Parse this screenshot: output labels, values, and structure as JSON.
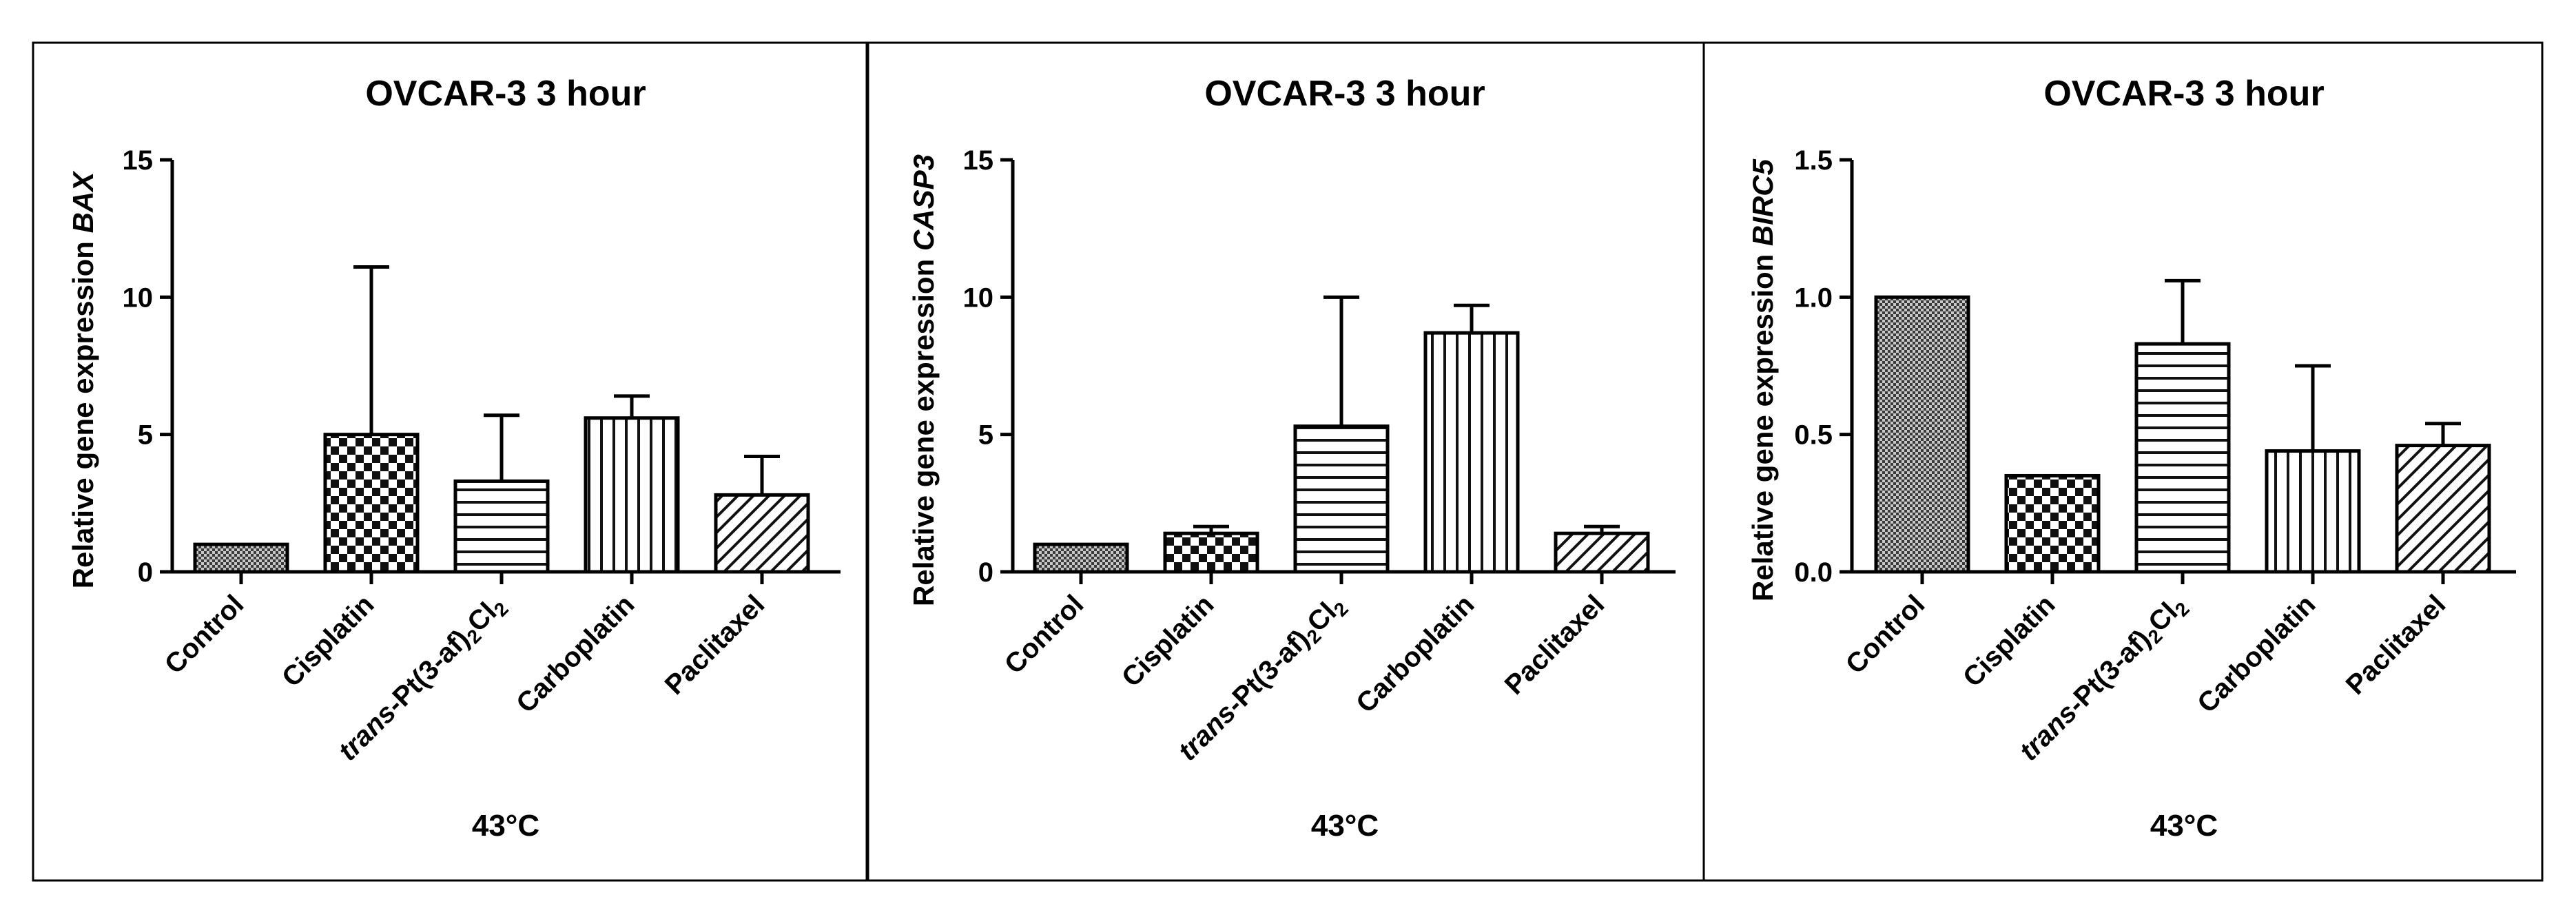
{
  "chart_data": [
    {
      "type": "bar",
      "title": "OVCAR-3 3 hour",
      "ylabel_prefix": "Relative gene expression ",
      "ylabel_gene": "BAX",
      "xlabel": "43°C",
      "categories": [
        "Control",
        "Cisplatin",
        "trans-Pt(3-af)2Cl2",
        "Carboplatin",
        "Paclitaxel"
      ],
      "values": [
        1.0,
        5.0,
        3.3,
        5.6,
        2.8
      ],
      "errors": [
        0,
        6.1,
        2.4,
        0.8,
        1.4
      ],
      "ylim": [
        0,
        15
      ],
      "yticks": [
        "0",
        "5",
        "10",
        "15"
      ],
      "ytick_values": [
        0,
        5,
        10,
        15
      ]
    },
    {
      "type": "bar",
      "title": "OVCAR-3 3 hour",
      "ylabel_prefix": "Relative gene expression ",
      "ylabel_gene": "CASP3",
      "xlabel": "43°C",
      "categories": [
        "Control",
        "Cisplatin",
        "trans-Pt(3-af)2Cl2",
        "Carboplatin",
        "Paclitaxel"
      ],
      "values": [
        1.0,
        1.4,
        5.3,
        8.7,
        1.4
      ],
      "errors": [
        0,
        0.25,
        4.7,
        1.0,
        0.25
      ],
      "ylim": [
        0,
        15
      ],
      "yticks": [
        "0",
        "5",
        "10",
        "15"
      ],
      "ytick_values": [
        0,
        5,
        10,
        15
      ]
    },
    {
      "type": "bar",
      "title": "OVCAR-3 3 hour",
      "ylabel_prefix": "Relative gene expression ",
      "ylabel_gene": "BIRC5",
      "xlabel": "43°C",
      "categories": [
        "Control",
        "Cisplatin",
        "trans-Pt(3-af)2Cl2",
        "Carboplatin",
        "Paclitaxel"
      ],
      "values": [
        1.0,
        0.35,
        0.83,
        0.44,
        0.46
      ],
      "errors": [
        0,
        0,
        0.23,
        0.31,
        0.08
      ],
      "ylim": [
        0,
        1.5
      ],
      "yticks": [
        "0.0",
        "0.5",
        "1.0",
        "1.5"
      ],
      "ytick_values": [
        0,
        0.5,
        1.0,
        1.5
      ]
    }
  ],
  "colors": {
    "ink": "#000000",
    "background": "#ffffff",
    "control_fill": "#555555"
  }
}
